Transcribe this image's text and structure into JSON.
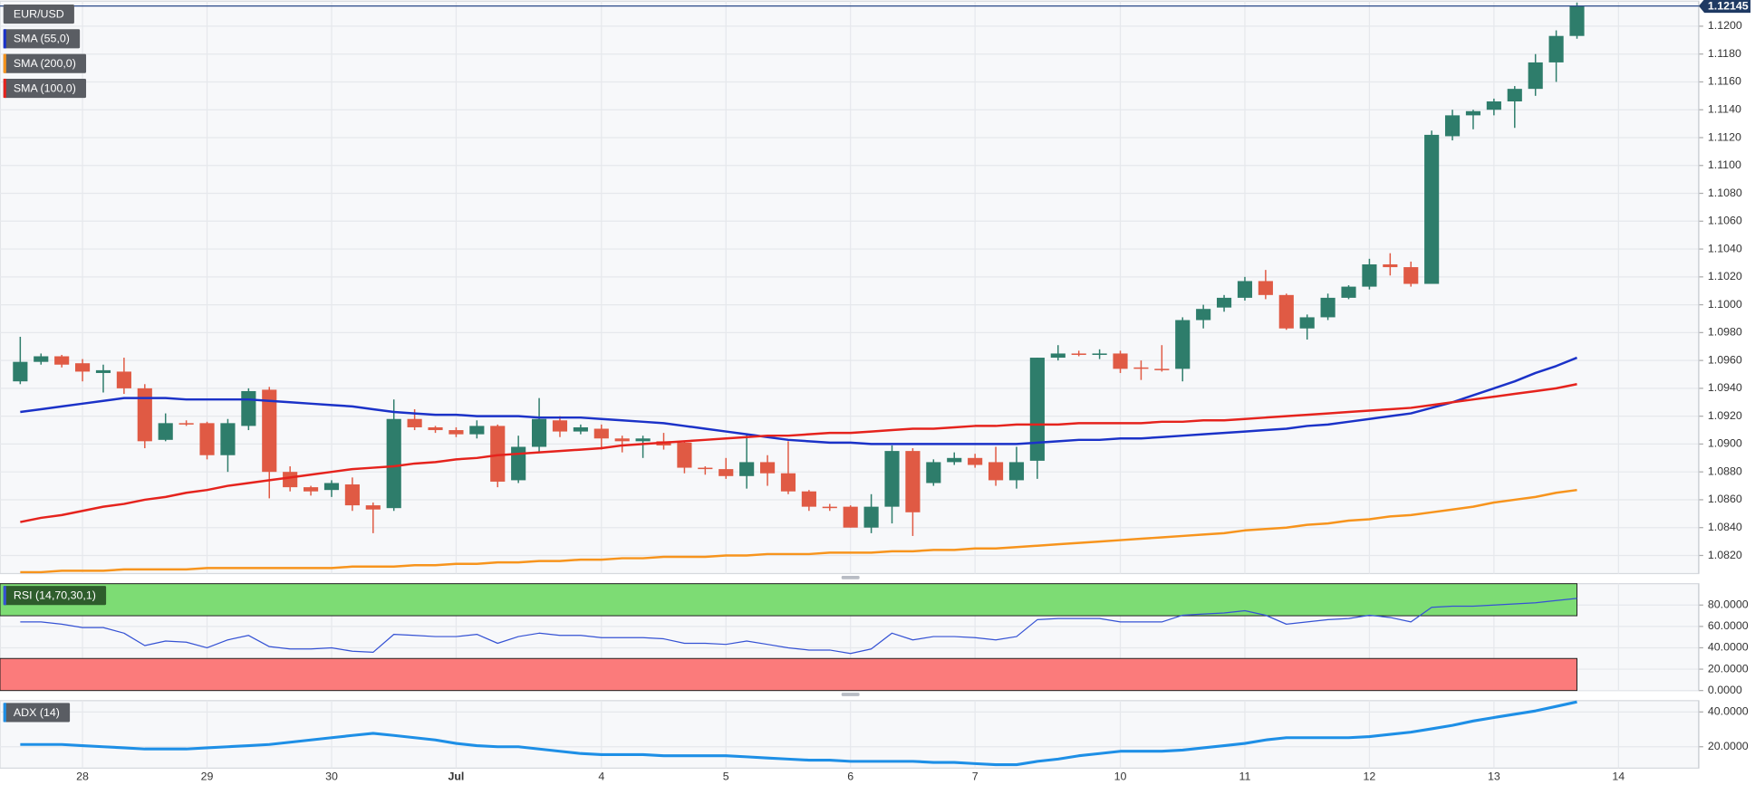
{
  "chart_data": [
    {
      "type": "candlestick",
      "categories": [
        null,
        null,
        null,
        "28",
        null,
        null,
        null,
        null,
        null,
        "29",
        null,
        null,
        null,
        null,
        null,
        "30",
        null,
        null,
        null,
        null,
        null,
        "Jul",
        null,
        null,
        null,
        null,
        null,
        null,
        "4",
        null,
        null,
        null,
        null,
        null,
        "5",
        null,
        null,
        null,
        null,
        null,
        "6",
        null,
        null,
        null,
        null,
        null,
        "7",
        null,
        null,
        null,
        null,
        null,
        null,
        "10",
        null,
        null,
        null,
        null,
        null,
        "11",
        null,
        null,
        null,
        null,
        null,
        "12",
        null,
        null,
        null,
        null,
        null,
        "13",
        null,
        null,
        null,
        null,
        null,
        "14"
      ],
      "ohlc": {
        "name": "EUR/USD",
        "up_color": "#2e7d6b",
        "down_color": "#e05a44",
        "open": [
          1.0945,
          1.0959,
          1.0963,
          1.0958,
          1.0951,
          1.0952,
          1.094,
          1.0903,
          1.0915,
          1.0915,
          1.0892,
          1.0913,
          1.0939,
          1.088,
          1.0869,
          1.0867,
          1.0871,
          1.0856,
          1.0854,
          1.0918,
          1.0912,
          1.091,
          1.0907,
          1.0913,
          1.0874,
          1.0898,
          1.0917,
          1.0909,
          1.0911,
          1.0904,
          1.0902,
          1.0902,
          1.0901,
          1.0883,
          1.0882,
          1.0877,
          1.0887,
          1.0879,
          1.0866,
          1.0855,
          1.0855,
          1.084,
          1.0855,
          1.0895,
          1.0872,
          1.0887,
          1.089,
          1.0887,
          1.0874,
          1.0888,
          1.0962,
          1.0965,
          1.0964,
          1.0965,
          1.0955,
          1.0954,
          1.0954,
          1.0989,
          1.0998,
          1.1005,
          1.1017,
          1.1007,
          1.0983,
          1.0991,
          1.1005,
          1.1013,
          1.1029,
          1.1027,
          1.1015,
          1.1121,
          1.1136,
          1.114,
          1.1146,
          1.1155,
          1.1174,
          1.1193,
          null,
          null
        ],
        "high": [
          1.0977,
          1.0965,
          1.0964,
          1.0961,
          1.0957,
          1.0962,
          1.0943,
          1.0922,
          1.0917,
          1.0916,
          1.0918,
          1.094,
          1.0941,
          1.0884,
          1.087,
          1.0874,
          1.0876,
          1.0858,
          1.0932,
          1.0925,
          1.0913,
          1.0912,
          1.0917,
          1.0914,
          1.0906,
          1.0933,
          1.092,
          1.0914,
          1.0914,
          1.0906,
          1.0906,
          1.0908,
          1.0902,
          1.0884,
          1.089,
          1.0907,
          1.0892,
          1.0902,
          1.0867,
          1.0857,
          1.0856,
          1.0864,
          1.0899,
          1.0897,
          1.0889,
          1.0894,
          1.0893,
          1.0898,
          1.0898,
          1.0962,
          1.0971,
          1.0967,
          1.0968,
          1.0967,
          1.096,
          1.0971,
          1.0991,
          1.1,
          1.1007,
          1.102,
          1.1025,
          1.1008,
          1.0993,
          1.1008,
          1.1014,
          1.1033,
          1.1037,
          1.1031,
          1.1125,
          1.114,
          1.114,
          1.1148,
          1.1157,
          1.118,
          1.1197,
          1.1217,
          null,
          null
        ],
        "low": [
          1.0943,
          1.0957,
          1.0955,
          1.0945,
          1.0937,
          1.0936,
          1.0897,
          1.0902,
          1.0913,
          1.0889,
          1.088,
          1.091,
          1.0861,
          1.0866,
          1.0863,
          1.0862,
          1.0852,
          1.0836,
          1.0852,
          1.091,
          1.0908,
          1.0905,
          1.0904,
          1.0869,
          1.0872,
          1.0894,
          1.0905,
          1.0907,
          1.0896,
          1.0894,
          1.089,
          1.0896,
          1.0879,
          1.0878,
          1.0875,
          1.0868,
          1.087,
          1.0864,
          1.0852,
          1.0852,
          1.084,
          1.0836,
          1.0843,
          1.0834,
          1.087,
          1.0885,
          1.0883,
          1.087,
          1.0868,
          1.0875,
          1.096,
          1.0963,
          1.0961,
          1.0951,
          1.0946,
          1.0952,
          1.0945,
          1.0983,
          1.0995,
          1.1003,
          1.1004,
          1.0982,
          1.0975,
          1.0989,
          1.1004,
          1.1011,
          1.1021,
          1.1013,
          1.1015,
          1.1118,
          1.1126,
          1.1136,
          1.1127,
          1.115,
          1.116,
          1.1191,
          null,
          null
        ],
        "close": [
          1.0959,
          1.0963,
          1.0957,
          1.0952,
          1.0953,
          1.094,
          1.0902,
          1.0915,
          1.0914,
          1.0892,
          1.0915,
          1.0938,
          1.088,
          1.0869,
          1.0866,
          1.0872,
          1.0856,
          1.0853,
          1.0918,
          1.0912,
          1.091,
          1.0907,
          1.0913,
          1.0873,
          1.0898,
          1.0918,
          1.0909,
          1.0912,
          1.0904,
          1.0902,
          1.0904,
          1.0899,
          1.0883,
          1.0882,
          1.0877,
          1.0887,
          1.0879,
          1.0866,
          1.0855,
          1.0854,
          1.084,
          1.0855,
          1.0895,
          1.0851,
          1.0887,
          1.089,
          1.0885,
          1.0874,
          1.0887,
          1.0962,
          1.0965,
          1.0964,
          1.0965,
          1.0954,
          1.0954,
          1.0953,
          1.0989,
          1.0997,
          1.1005,
          1.1017,
          1.1007,
          1.0983,
          1.0991,
          1.1005,
          1.1013,
          1.1029,
          1.1027,
          1.1015,
          1.1122,
          1.1136,
          1.1139,
          1.1146,
          1.1155,
          1.1174,
          1.1193,
          1.12145,
          null,
          null
        ]
      },
      "series": [
        {
          "name": "SMA (55,0)",
          "color": "#1b32c8",
          "values": [
            1.0923,
            1.0925,
            1.0927,
            1.0929,
            1.0931,
            1.0933,
            1.0933,
            1.0933,
            1.0932,
            1.0932,
            1.0932,
            1.0932,
            1.0931,
            1.093,
            1.0929,
            1.0928,
            1.0927,
            1.0925,
            1.0923,
            1.0922,
            1.0921,
            1.0921,
            1.092,
            1.092,
            1.092,
            1.0919,
            1.0919,
            1.0919,
            1.0918,
            1.0917,
            1.0916,
            1.0915,
            1.0913,
            1.0911,
            1.0909,
            1.0907,
            1.0905,
            1.0903,
            1.0902,
            1.0901,
            1.0901,
            1.09,
            1.09,
            1.09,
            1.09,
            1.09,
            1.09,
            1.09,
            1.09,
            1.0901,
            1.0902,
            1.0903,
            1.0903,
            1.0904,
            1.0904,
            1.0905,
            1.0906,
            1.0907,
            1.0908,
            1.0909,
            1.091,
            1.0911,
            1.0913,
            1.0914,
            1.0916,
            1.0918,
            1.092,
            1.0922,
            1.0926,
            1.093,
            1.0935,
            1.094,
            1.0945,
            1.0951,
            1.0956,
            1.0962,
            null,
            null
          ]
        },
        {
          "name": "SMA (200,0)",
          "color": "#f7941d",
          "values": [
            1.0808,
            1.0808,
            1.0809,
            1.0809,
            1.0809,
            1.081,
            1.081,
            1.081,
            1.081,
            1.0811,
            1.0811,
            1.0811,
            1.0811,
            1.0811,
            1.0811,
            1.0811,
            1.0812,
            1.0812,
            1.0812,
            1.0813,
            1.0813,
            1.0814,
            1.0814,
            1.0815,
            1.0815,
            1.0816,
            1.0816,
            1.0817,
            1.0817,
            1.0818,
            1.0818,
            1.0819,
            1.0819,
            1.0819,
            1.082,
            1.082,
            1.0821,
            1.0821,
            1.0821,
            1.0822,
            1.0822,
            1.0822,
            1.0823,
            1.0823,
            1.0824,
            1.0824,
            1.0825,
            1.0825,
            1.0826,
            1.0827,
            1.0828,
            1.0829,
            1.083,
            1.0831,
            1.0832,
            1.0833,
            1.0834,
            1.0835,
            1.0836,
            1.0838,
            1.0839,
            1.084,
            1.0842,
            1.0843,
            1.0845,
            1.0846,
            1.0848,
            1.0849,
            1.0851,
            1.0853,
            1.0855,
            1.0858,
            1.086,
            1.0862,
            1.0865,
            1.0867,
            null,
            null
          ]
        },
        {
          "name": "SMA (100,0)",
          "color": "#e5231d",
          "values": [
            1.0844,
            1.0847,
            1.0849,
            1.0852,
            1.0855,
            1.0857,
            1.086,
            1.0862,
            1.0865,
            1.0867,
            1.087,
            1.0872,
            1.0874,
            1.0876,
            1.0878,
            1.088,
            1.0882,
            1.0883,
            1.0884,
            1.0886,
            1.0887,
            1.0889,
            1.089,
            1.0892,
            1.0893,
            1.0894,
            1.0895,
            1.0896,
            1.0897,
            1.0899,
            1.09,
            1.0901,
            1.0902,
            1.0903,
            1.0904,
            1.0905,
            1.0906,
            1.0906,
            1.0907,
            1.0908,
            1.0908,
            1.0909,
            1.091,
            1.0911,
            1.0911,
            1.0912,
            1.0913,
            1.0913,
            1.0914,
            1.0914,
            1.0914,
            1.0915,
            1.0915,
            1.0915,
            1.0915,
            1.0916,
            1.0916,
            1.0917,
            1.0917,
            1.0918,
            1.0919,
            1.092,
            1.0921,
            1.0922,
            1.0923,
            1.0924,
            1.0925,
            1.0926,
            1.0928,
            1.093,
            1.0932,
            1.0934,
            1.0936,
            1.0938,
            1.094,
            1.0943,
            null,
            null
          ]
        }
      ],
      "last_price": 1.12145,
      "ylim": [
        1.0807,
        1.1218
      ],
      "yticks": [
        {
          "value": 1.082,
          "label": "1.0820"
        },
        {
          "value": 1.084,
          "label": "1.0840"
        },
        {
          "value": 1.086,
          "label": "1.0860"
        },
        {
          "value": 1.088,
          "label": "1.0880"
        },
        {
          "value": 1.09,
          "label": "1.0900"
        },
        {
          "value": 1.092,
          "label": "1.0920"
        },
        {
          "value": 1.094,
          "label": "1.0940"
        },
        {
          "value": 1.096,
          "label": "1.0960"
        },
        {
          "value": 1.098,
          "label": "1.0980"
        },
        {
          "value": 1.1,
          "label": "1.1000"
        },
        {
          "value": 1.102,
          "label": "1.1020"
        },
        {
          "value": 1.104,
          "label": "1.1040"
        },
        {
          "value": 1.106,
          "label": "1.1060"
        },
        {
          "value": 1.108,
          "label": "1.1080"
        },
        {
          "value": 1.11,
          "label": "1.1100"
        },
        {
          "value": 1.112,
          "label": "1.1120"
        },
        {
          "value": 1.114,
          "label": "1.1140"
        },
        {
          "value": 1.116,
          "label": "1.1160"
        },
        {
          "value": 1.118,
          "label": "1.1180"
        },
        {
          "value": 1.12,
          "label": "1.1200"
        }
      ],
      "grid": true
    },
    {
      "type": "line",
      "series": [
        {
          "name": "RSI (14,70,30,1)",
          "color": "#3552d4",
          "values": [
            64.2,
            64.2,
            62.1,
            58.9,
            58.9,
            53.7,
            42.1,
            46.3,
            45.3,
            40.0,
            47.4,
            51.6,
            41.1,
            38.9,
            38.9,
            40.0,
            36.8,
            35.8,
            52.6,
            51.6,
            50.5,
            50.5,
            52.6,
            44.2,
            50.5,
            53.7,
            51.6,
            51.6,
            49.5,
            49.5,
            49.5,
            48.4,
            44.2,
            44.2,
            43.2,
            46.3,
            43.2,
            40.0,
            37.9,
            37.9,
            34.7,
            38.9,
            53.7,
            47.4,
            50.5,
            50.5,
            49.5,
            47.4,
            50.5,
            66.3,
            67.4,
            67.4,
            67.4,
            64.2,
            64.2,
            64.2,
            70.5,
            71.6,
            72.6,
            74.7,
            70.5,
            62.1,
            64.2,
            66.3,
            67.4,
            70.5,
            68.4,
            64.2,
            77.9,
            78.9,
            78.9,
            80.0,
            81.1,
            82.1,
            84.2,
            86.3,
            null,
            null
          ]
        }
      ],
      "bands": [
        {
          "from": 70,
          "to": 100,
          "color": "#7ddc74"
        },
        {
          "from": 0,
          "to": 30,
          "color": "#fb7b7b"
        }
      ],
      "ylim": [
        0,
        100
      ],
      "yticks": [
        {
          "value": 0,
          "label": "0.0000"
        },
        {
          "value": 20,
          "label": "20.0000"
        },
        {
          "value": 40,
          "label": "40.0000"
        },
        {
          "value": 60,
          "label": "60.0000"
        },
        {
          "value": 80,
          "label": "80.0000"
        }
      ],
      "grid": true
    },
    {
      "type": "line",
      "series": [
        {
          "name": "ADX (14)",
          "color": "#1e8fe6",
          "values": [
            21.3,
            21.3,
            21.3,
            20.6,
            20.0,
            19.4,
            18.7,
            18.7,
            18.7,
            19.4,
            20.0,
            20.6,
            21.3,
            22.6,
            23.9,
            25.2,
            26.5,
            27.7,
            26.5,
            25.2,
            23.9,
            21.9,
            20.6,
            20.0,
            20.0,
            18.7,
            17.4,
            16.1,
            15.5,
            15.5,
            15.5,
            14.8,
            14.8,
            14.8,
            14.8,
            14.2,
            13.5,
            12.9,
            12.3,
            12.3,
            11.6,
            11.6,
            11.6,
            11.6,
            11.0,
            11.0,
            10.3,
            9.7,
            9.7,
            11.6,
            12.9,
            14.8,
            16.1,
            17.4,
            17.4,
            17.4,
            18.1,
            19.4,
            20.6,
            21.9,
            23.9,
            25.2,
            25.2,
            25.2,
            25.2,
            25.8,
            27.1,
            28.4,
            30.3,
            32.3,
            34.8,
            36.8,
            38.7,
            40.6,
            43.2,
            45.8,
            null,
            null
          ]
        }
      ],
      "ylim": [
        7.7,
        46.5
      ],
      "yticks": [
        {
          "value": 20,
          "label": "20.0000"
        },
        {
          "value": 40,
          "label": "40.0000"
        }
      ],
      "grid": true
    }
  ]
}
